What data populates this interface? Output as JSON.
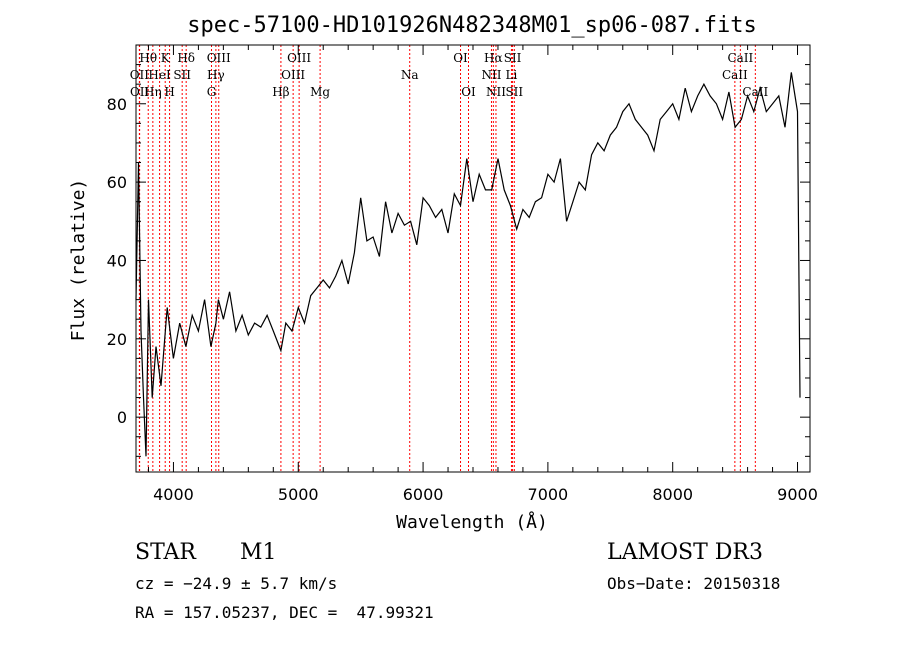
{
  "chart_data": {
    "type": "line",
    "title": "spec-57100-HD101926N482348M01_sp06-087.fits",
    "xlabel": "Wavelength (Å)",
    "ylabel": "Flux (relative)",
    "xlim": [
      3700,
      9100
    ],
    "ylim": [
      -14,
      95
    ],
    "xticks": [
      4000,
      5000,
      6000,
      7000,
      8000,
      9000
    ],
    "yticks": [
      0,
      20,
      40,
      60,
      80
    ],
    "grid": false,
    "line_color": "#000000",
    "marker_color": "#ff0000",
    "series": [
      {
        "x": [
          3700,
          3720,
          3740,
          3760,
          3780,
          3800,
          3830,
          3860,
          3900,
          3950,
          4000,
          4050,
          4100,
          4150,
          4200,
          4250,
          4300,
          4340,
          4360,
          4400,
          4450,
          4500,
          4550,
          4600,
          4650,
          4700,
          4750,
          4800,
          4861,
          4900,
          4950,
          5000,
          5050,
          5100,
          5150,
          5200,
          5250,
          5300,
          5350,
          5400,
          5450,
          5500,
          5550,
          5600,
          5650,
          5700,
          5750,
          5800,
          5850,
          5900,
          5950,
          6000,
          6050,
          6100,
          6150,
          6200,
          6250,
          6300,
          6350,
          6400,
          6450,
          6500,
          6550,
          6600,
          6650,
          6700,
          6750,
          6800,
          6850,
          6900,
          6950,
          7000,
          7050,
          7100,
          7150,
          7200,
          7250,
          7300,
          7350,
          7400,
          7450,
          7500,
          7550,
          7600,
          7650,
          7700,
          7750,
          7800,
          7850,
          7900,
          7950,
          8000,
          8050,
          8100,
          8150,
          8200,
          8250,
          8300,
          8350,
          8400,
          8450,
          8500,
          8550,
          8600,
          8650,
          8700,
          8750,
          8800,
          8850,
          8900,
          8950,
          9000,
          9020
        ],
        "y": [
          30,
          65,
          22,
          5,
          -10,
          30,
          5,
          18,
          8,
          28,
          15,
          24,
          18,
          26,
          22,
          30,
          18,
          24,
          30,
          25,
          32,
          22,
          26,
          21,
          24,
          23,
          26,
          22,
          17,
          24,
          22,
          28,
          24,
          31,
          33,
          35,
          33,
          36,
          40,
          34,
          42,
          56,
          45,
          46,
          41,
          55,
          47,
          52,
          49,
          50,
          44,
          56,
          54,
          51,
          53,
          47,
          57,
          54,
          66,
          55,
          62,
          58,
          58,
          66,
          58,
          54,
          48,
          53,
          51,
          55,
          56,
          62,
          60,
          66,
          50,
          55,
          60,
          58,
          67,
          70,
          68,
          72,
          74,
          78,
          80,
          76,
          74,
          72,
          68,
          76,
          78,
          80,
          76,
          84,
          78,
          82,
          85,
          82,
          80,
          76,
          83,
          74,
          76,
          82,
          78,
          84,
          78,
          80,
          82,
          74,
          88,
          78,
          5
        ]
      }
    ],
    "spectral_lines": [
      {
        "label": "Hθ",
        "wavelength": 3798,
        "row": 1
      },
      {
        "label": "OII",
        "wavelength": 3727,
        "row": 2
      },
      {
        "label": "OII",
        "wavelength": 3729,
        "row": 3
      },
      {
        "label": "HeI",
        "wavelength": 3889,
        "row": 2
      },
      {
        "label": "Hη",
        "wavelength": 3835,
        "row": 3
      },
      {
        "label": "K",
        "wavelength": 3934,
        "row": 1
      },
      {
        "label": "SII",
        "wavelength": 4070,
        "row": 2
      },
      {
        "label": "H",
        "wavelength": 3969,
        "row": 3
      },
      {
        "label": "Hδ",
        "wavelength": 4102,
        "row": 1
      },
      {
        "label": "OIII",
        "wavelength": 4363,
        "row": 1
      },
      {
        "label": "Hγ",
        "wavelength": 4340,
        "row": 2
      },
      {
        "label": "G",
        "wavelength": 4305,
        "row": 3
      },
      {
        "label": "OIII",
        "wavelength": 5007,
        "row": 1
      },
      {
        "label": "OIII",
        "wavelength": 4959,
        "row": 2
      },
      {
        "label": "Hβ",
        "wavelength": 4861,
        "row": 3
      },
      {
        "label": "Mg",
        "wavelength": 5175,
        "row": 3
      },
      {
        "label": "Na",
        "wavelength": 5893,
        "row": 2
      },
      {
        "label": "OI",
        "wavelength": 6300,
        "row": 1
      },
      {
        "label": "OI",
        "wavelength": 6364,
        "row": 3
      },
      {
        "label": "Hα",
        "wavelength": 6563,
        "row": 1
      },
      {
        "label": "SII",
        "wavelength": 6717,
        "row": 1
      },
      {
        "label": "NII",
        "wavelength": 6548,
        "row": 2
      },
      {
        "label": "Li",
        "wavelength": 6708,
        "row": 2
      },
      {
        "label": "NII",
        "wavelength": 6584,
        "row": 3
      },
      {
        "label": "SII",
        "wavelength": 6731,
        "row": 3
      },
      {
        "label": "CaII",
        "wavelength": 8542,
        "row": 1
      },
      {
        "label": "CaII",
        "wavelength": 8498,
        "row": 2
      },
      {
        "label": "CaII",
        "wavelength": 8662,
        "row": 3
      }
    ]
  },
  "info": {
    "class": "STAR",
    "subclass": "M1",
    "survey": "LAMOST DR3",
    "redshift": "cz = −24.9 ± 5.7 km/s",
    "obs_date": "Obs−Date: 20150318",
    "coords": "RA = 157.05237, DEC =  47.99321"
  }
}
